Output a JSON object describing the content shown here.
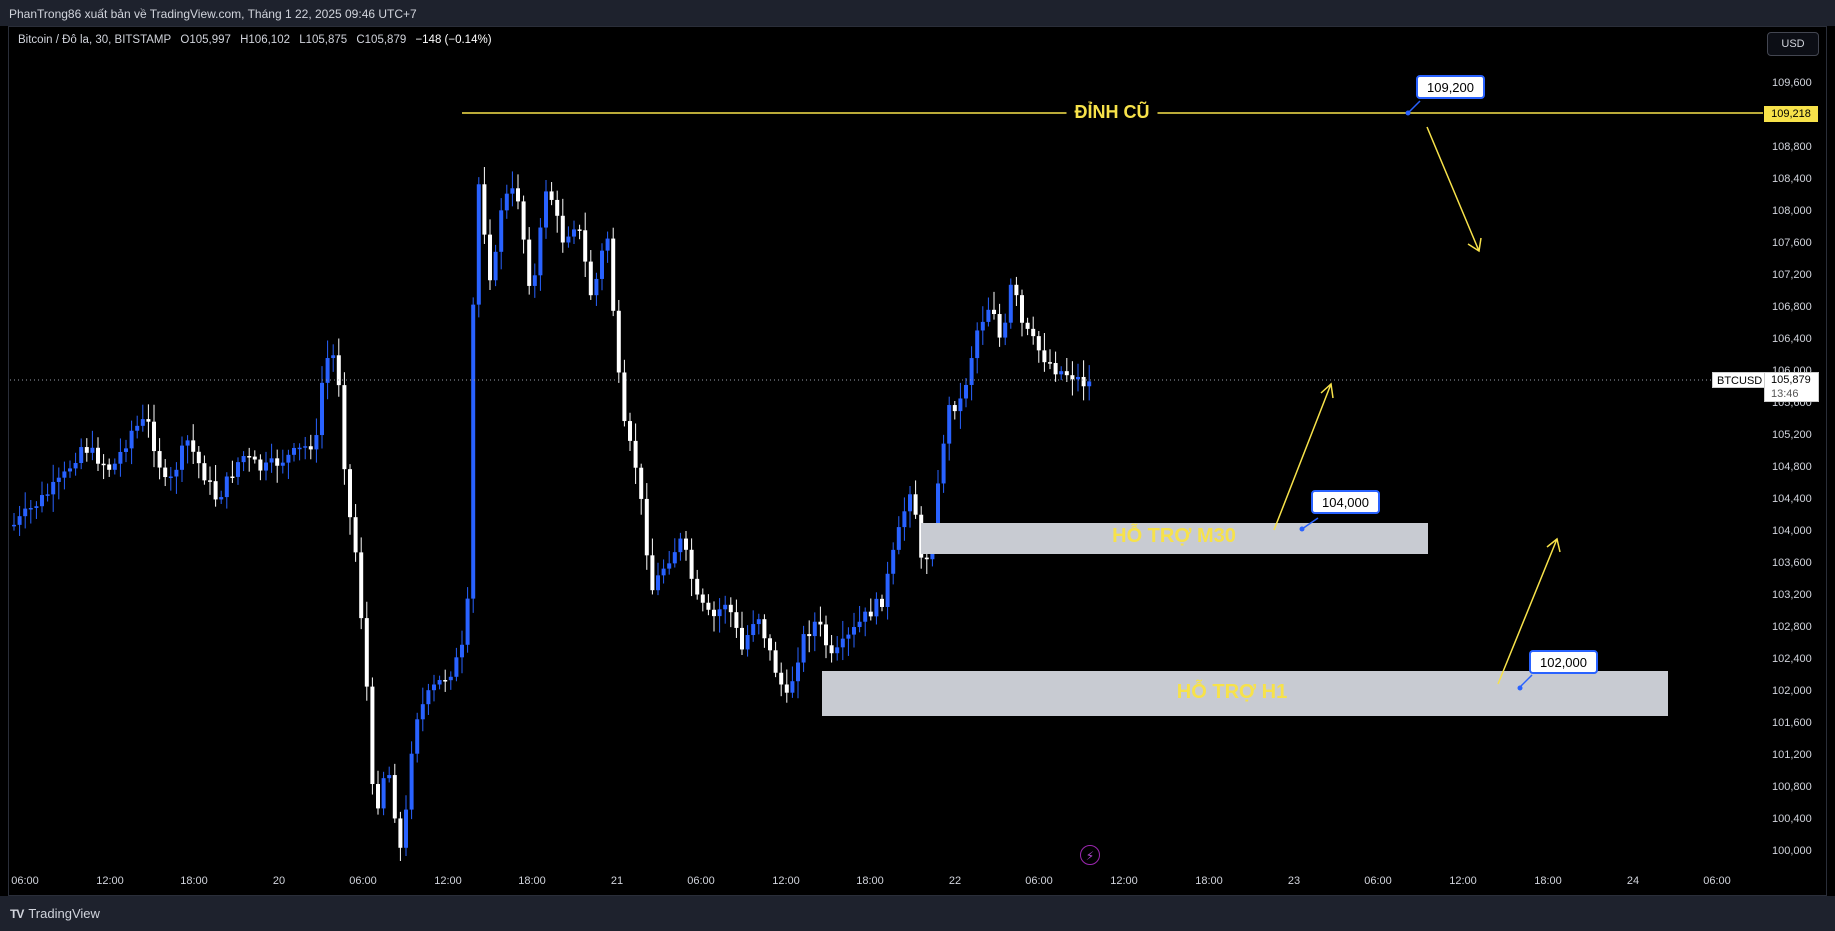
{
  "publisher": "PhanTrong86 xuất bản về TradingView.com, Tháng 1 22, 2025 09:46 UTC+7",
  "legend": {
    "symbol": "Bitcoin / Đô la, 30, BITSTAMP",
    "open": "O105,997",
    "high": "H106,102",
    "low": "L105,875",
    "close": "C105,879",
    "change": "−148 (−0.14%)"
  },
  "currency_button": "USD",
  "brand": "TradingView",
  "brand_logo": "TV",
  "price_axis": [
    "109,600",
    "108,800",
    "108,400",
    "108,000",
    "107,600",
    "107,200",
    "106,800",
    "106,400",
    "106,000",
    "105,600",
    "105,200",
    "104,800",
    "104,400",
    "104,000",
    "103,600",
    "103,200",
    "102,800",
    "102,400",
    "102,000",
    "101,600",
    "101,200",
    "100,800",
    "100,400",
    "100,000"
  ],
  "time_axis": [
    "06:00",
    "12:00",
    "18:00",
    "20",
    "06:00",
    "12:00",
    "18:00",
    "21",
    "06:00",
    "12:00",
    "18:00",
    "22",
    "06:00",
    "12:00",
    "18:00",
    "23",
    "06:00",
    "12:00",
    "18:00",
    "24",
    "06:00"
  ],
  "annotations": {
    "peak_label": "ĐỈNH CŨ",
    "support_m30": "HỖ TRỢ M30",
    "support_h1": "HỖ TRỢ H1",
    "tag_109200": "109,200",
    "tag_104000": "104,000",
    "tag_102000": "102,000",
    "peak_price_flag": "109,218"
  },
  "last_price": {
    "symbol": "BTCUSD",
    "price": "105,879",
    "countdown": "13:46"
  },
  "colors": {
    "up_candle": "#2962ff",
    "down_candle": "#ffffff",
    "annotation": "#f7e24a",
    "zone": "#c8cbd2",
    "tag_border": "#2962ff"
  },
  "icons": {
    "alert": "lightning-icon"
  }
}
